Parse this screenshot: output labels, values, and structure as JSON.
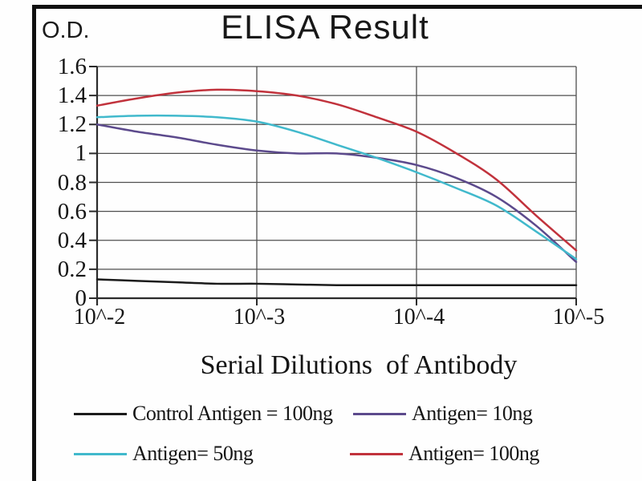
{
  "title": "ELISA Result",
  "y_axis_label": "O.D.",
  "x_axis_label": "Serial Dilutions  of Antibody",
  "chart_data": {
    "type": "line",
    "title": "ELISA Result",
    "xlabel": "Serial Dilutions  of Antibody",
    "ylabel": "O.D.",
    "x_scale": "log10 of antibody dilution",
    "x_tick_labels": [
      "10^-2",
      "10^-3",
      "10^-4",
      "10^-5"
    ],
    "x_tick_values": [
      -2,
      -3,
      -4,
      -5
    ],
    "y_tick_labels": [
      "1.6",
      "1.4",
      "1.2",
      "1",
      "0.8",
      "0.6",
      "0.4",
      "0.2",
      "0"
    ],
    "y_tick_values": [
      1.6,
      1.4,
      1.2,
      1.0,
      0.8,
      0.6,
      0.4,
      0.2,
      0
    ],
    "ylim": [
      0,
      1.6
    ],
    "xlim": [
      -2,
      -5
    ],
    "grid": true,
    "legend_position": "bottom",
    "axis_color": "#2b2b2b",
    "grid_color": "#4f4f4f",
    "x_samples": [
      -2,
      -2.25,
      -2.5,
      -2.75,
      -3,
      -3.25,
      -3.5,
      -3.75,
      -4,
      -4.25,
      -4.5,
      -4.75,
      -5
    ],
    "series": [
      {
        "name": "Control Antigen = 100ng",
        "key": "control-antigen-100ng",
        "color": "#1b1b1b",
        "values": [
          0.13,
          0.12,
          0.11,
          0.1,
          0.1,
          0.095,
          0.09,
          0.09,
          0.09,
          0.09,
          0.09,
          0.09,
          0.09
        ]
      },
      {
        "name": "Antigen= 10ng",
        "key": "antigen-10ng",
        "color": "#5c4a8c",
        "values": [
          1.2,
          1.15,
          1.11,
          1.06,
          1.02,
          1.0,
          1.0,
          0.97,
          0.92,
          0.83,
          0.7,
          0.5,
          0.25
        ]
      },
      {
        "name": "Antigen= 50ng",
        "key": "antigen-50ng",
        "color": "#41b9cc",
        "values": [
          1.25,
          1.26,
          1.26,
          1.25,
          1.22,
          1.15,
          1.06,
          0.97,
          0.87,
          0.76,
          0.64,
          0.46,
          0.27
        ]
      },
      {
        "name": "Antigen= 100ng",
        "key": "antigen-100ng",
        "color": "#c1323c",
        "values": [
          1.33,
          1.38,
          1.42,
          1.44,
          1.43,
          1.4,
          1.34,
          1.25,
          1.15,
          1.0,
          0.82,
          0.57,
          0.33
        ]
      }
    ],
    "values_at_labeled_dilutions": {
      "dilutions": [
        "10^-2",
        "10^-3",
        "10^-4",
        "10^-5"
      ],
      "Control Antigen = 100ng": [
        0.13,
        0.1,
        0.09,
        0.09
      ],
      "Antigen= 10ng": [
        1.2,
        1.02,
        0.92,
        0.25
      ],
      "Antigen= 50ng": [
        1.25,
        1.22,
        0.87,
        0.27
      ],
      "Antigen= 100ng": [
        1.33,
        1.43,
        1.15,
        0.33
      ]
    }
  },
  "legend": {
    "items": [
      {
        "label": "Control Antigen = 100ng",
        "color": "#1b1b1b"
      },
      {
        "label": "Antigen= 10ng",
        "color": "#5c4a8c"
      },
      {
        "label": "Antigen= 50ng",
        "color": "#41b9cc"
      },
      {
        "label": "Antigen= 100ng",
        "color": "#c1323c"
      }
    ]
  }
}
